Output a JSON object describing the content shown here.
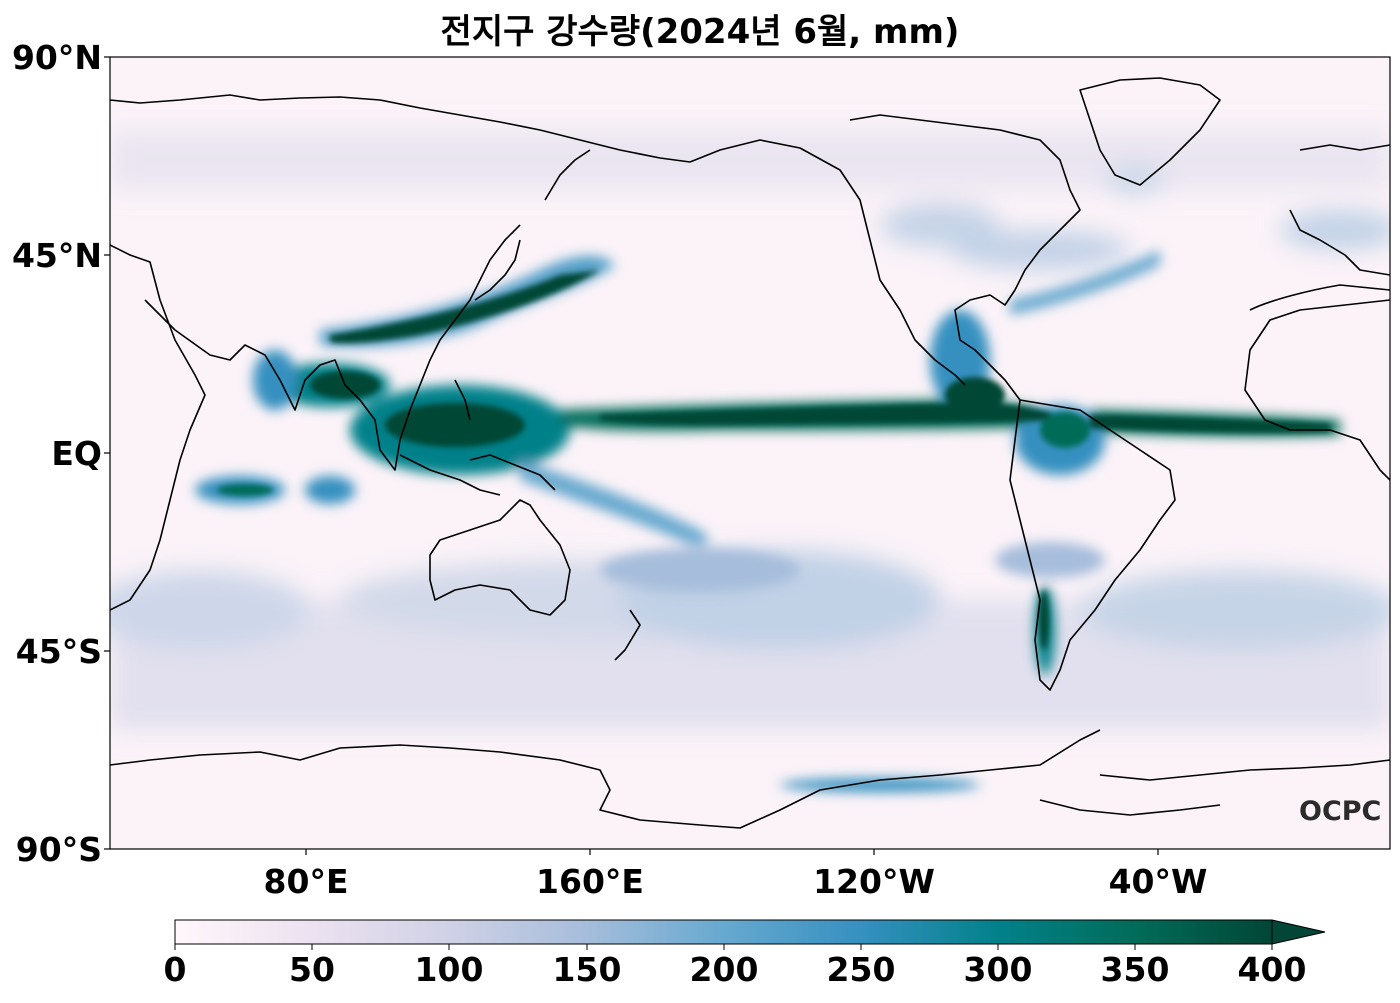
{
  "title": "전지구 강수량(2024년 6월, mm)",
  "lat_labels": [
    "90°N",
    "45°N",
    "EQ",
    "45°S",
    "90°S"
  ],
  "lon_labels": [
    "80°E",
    "160°E",
    "120°W",
    "40°W"
  ],
  "colorbar": {
    "ticks": [
      "0",
      "50",
      "100",
      "150",
      "200",
      "250",
      "300",
      "350",
      "400"
    ],
    "range": [
      0,
      400
    ],
    "extend": "max",
    "colors": [
      "#fff7fb",
      "#ece2f0",
      "#d0d1e6",
      "#a6bddb",
      "#67a9cf",
      "#3690c0",
      "#02818a",
      "#016c59",
      "#014636"
    ]
  },
  "watermark": "OCPC",
  "map": {
    "projection": "PlateCarree, central longitude 180°",
    "extent_lon": [
      30,
      390
    ],
    "extent_lat": [
      -90,
      90
    ],
    "coastlines": true
  }
}
